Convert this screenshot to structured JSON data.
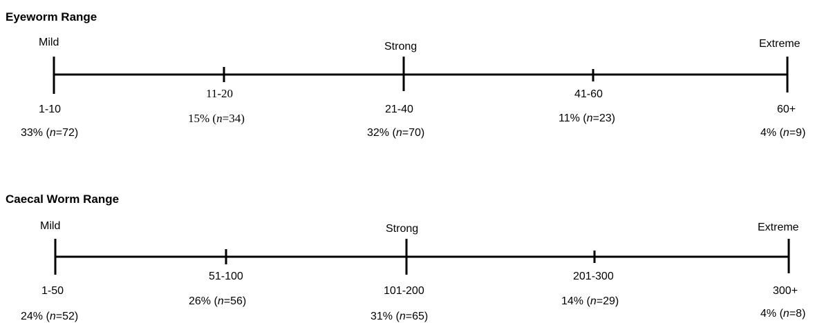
{
  "scales": [
    {
      "title": "Eyeworm Range",
      "levels": {
        "mild": "Mild",
        "strong": "Strong",
        "extreme": "Extreme"
      },
      "points": [
        {
          "range": "1-10",
          "pct": "33%",
          "n": "72"
        },
        {
          "range": "11-20",
          "pct": "15%",
          "n": "34"
        },
        {
          "range": "21-40",
          "pct": "32%",
          "n": "70"
        },
        {
          "range": "41-60",
          "pct": "11%",
          "n": "23"
        },
        {
          "range": "60+",
          "pct": "4%",
          "n": "9"
        }
      ]
    },
    {
      "title": "Caecal Worm Range",
      "levels": {
        "mild": "Mild",
        "strong": "Strong",
        "extreme": "Extreme"
      },
      "points": [
        {
          "range": "1-50",
          "pct": "24%",
          "n": "52"
        },
        {
          "range": "51-100",
          "pct": "26%",
          "n": "56"
        },
        {
          "range": "101-200",
          "pct": "31%",
          "n": "65"
        },
        {
          "range": "201-300",
          "pct": "14%",
          "n": "29"
        },
        {
          "range": "300+",
          "pct": "4%",
          "n": "8"
        }
      ]
    }
  ],
  "n_label": "n"
}
